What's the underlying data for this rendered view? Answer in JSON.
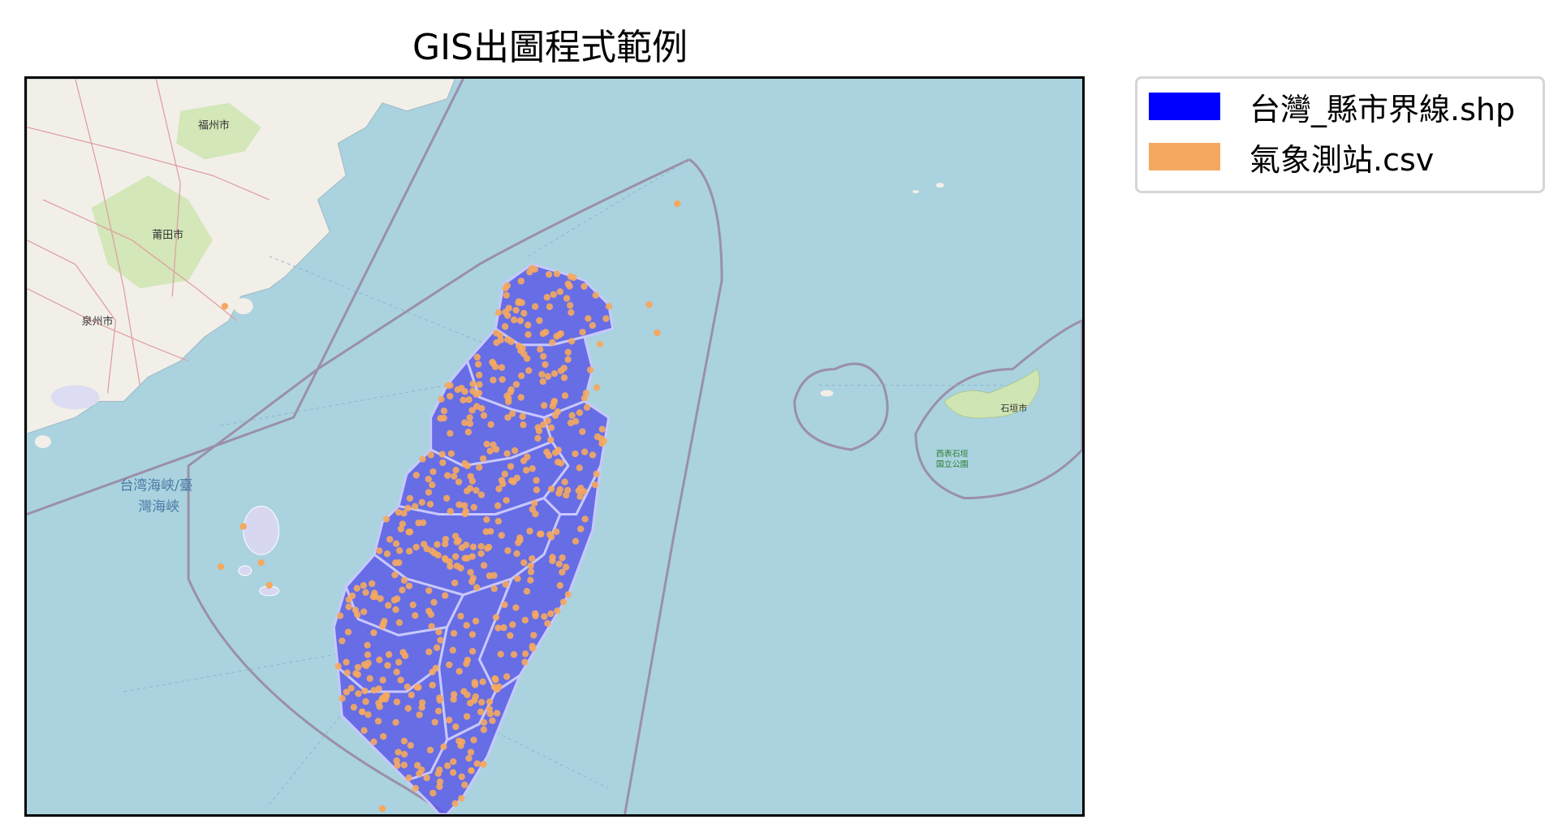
{
  "title": "GIS出圖程式範例",
  "legend": {
    "items": [
      {
        "label": "台灣_縣市界線.shp",
        "color": "#0000ff"
      },
      {
        "label": "氣象測站.csv",
        "color": "#f5a85f"
      }
    ]
  },
  "basemap_labels": {
    "fuzhou": "福州市",
    "putian": "莆田市",
    "quanzhou": "泉州市",
    "strait_line1": "台湾海峡/臺",
    "strait_line2": "灣海峽",
    "ishigaki": "石垣市",
    "park_line1": "西表石垣",
    "park_line2": "国立公園"
  },
  "colors": {
    "sea": "#aad3df",
    "land": "#f2efe9",
    "county_fill": "#5a5ae6",
    "county_border": "#c8c8ff",
    "station": "#f5a85f"
  }
}
